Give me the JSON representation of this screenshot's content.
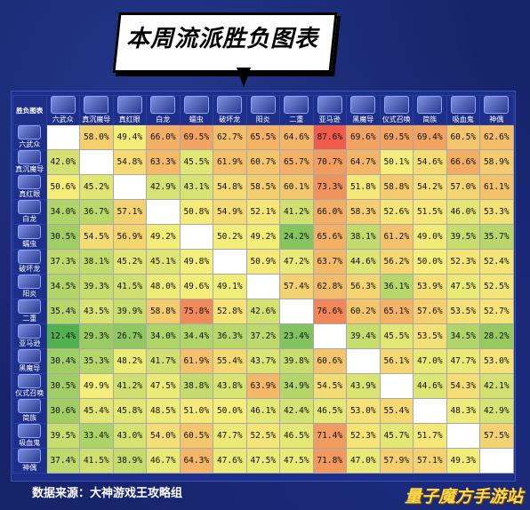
{
  "title": "本周流派胜负图表",
  "footer": {
    "source": "数据来源：大神游戏王攻略组",
    "watermark": "量子魔方手游站"
  },
  "chart_data": {
    "type": "heatmap",
    "corner_label": "胜负图表",
    "categories": [
      "六武众",
      "真沉魔导",
      "真红眼",
      "白龙",
      "蠕虫",
      "破坏龙",
      "阳炎",
      "二重",
      "亚马逊",
      "黑魔导",
      "仪式召唤",
      "简族",
      "吸血鬼",
      "神偶"
    ],
    "values": [
      [
        null,
        "58.0%",
        "49.4%",
        "66.0%",
        "69.5%",
        "62.7%",
        "65.5%",
        "64.6%",
        "87.6%",
        "69.6%",
        "69.5%",
        "69.4%",
        "60.5%",
        "62.6%"
      ],
      [
        "42.0%",
        null,
        "54.8%",
        "63.3%",
        "45.5%",
        "61.9%",
        "60.7%",
        "65.7%",
        "70.7%",
        "64.7%",
        "50.1%",
        "54.6%",
        "66.6%",
        "58.9%"
      ],
      [
        "50.6%",
        "45.2%",
        null,
        "42.9%",
        "43.1%",
        "54.8%",
        "58.5%",
        "60.1%",
        "73.3%",
        "51.8%",
        "58.8%",
        "54.2%",
        "57.0%",
        "61.1%"
      ],
      [
        "34.0%",
        "36.7%",
        "57.1%",
        null,
        "50.8%",
        "54.9%",
        "52.1%",
        "41.2%",
        "66.0%",
        "58.3%",
        "52.6%",
        "51.5%",
        "46.0%",
        "53.3%"
      ],
      [
        "30.5%",
        "54.5%",
        "56.9%",
        "49.2%",
        null,
        "50.2%",
        "49.2%",
        "24.2%",
        "65.6%",
        "38.1%",
        "61.2%",
        "49.0%",
        "39.5%",
        "35.7%"
      ],
      [
        "37.3%",
        "38.1%",
        "45.2%",
        "45.1%",
        "49.8%",
        null,
        "50.9%",
        "47.2%",
        "63.7%",
        "44.6%",
        "56.2%",
        "50.0%",
        "52.3%",
        "52.4%"
      ],
      [
        "34.5%",
        "39.3%",
        "41.5%",
        "48.0%",
        "49.6%",
        "49.1%",
        null,
        "57.4%",
        "62.8%",
        "56.3%",
        "36.1%",
        "53.9%",
        "47.5%",
        "52.5%"
      ],
      [
        "35.4%",
        "43.5%",
        "39.9%",
        "58.8%",
        "75.8%",
        "52.8%",
        "42.6%",
        null,
        "76.6%",
        "60.2%",
        "65.1%",
        "57.6%",
        "53.5%",
        "52.7%"
      ],
      [
        "12.4%",
        "29.3%",
        "26.7%",
        "34.0%",
        "34.4%",
        "36.3%",
        "37.2%",
        "23.4%",
        null,
        "39.4%",
        "45.5%",
        "53.5%",
        "34.5%",
        "28.2%"
      ],
      [
        "30.4%",
        "35.3%",
        "48.2%",
        "41.7%",
        "61.9%",
        "55.4%",
        "43.7%",
        "39.8%",
        "60.6%",
        null,
        "56.1%",
        "47.0%",
        "47.7%",
        "53.0%"
      ],
      [
        "30.5%",
        "49.9%",
        "41.2%",
        "47.5%",
        "38.8%",
        "43.8%",
        "63.9%",
        "34.9%",
        "54.5%",
        "43.9%",
        null,
        "44.6%",
        "54.3%",
        "42.1%"
      ],
      [
        "30.6%",
        "45.4%",
        "45.8%",
        "48.5%",
        "51.0%",
        "50.0%",
        "46.1%",
        "42.4%",
        "46.5%",
        "53.0%",
        "55.4%",
        null,
        "48.3%",
        "42.9%"
      ],
      [
        "39.5%",
        "33.4%",
        "43.0%",
        "54.0%",
        "60.5%",
        "47.7%",
        "52.5%",
        "46.5%",
        "71.4%",
        "52.3%",
        "45.7%",
        "51.7%",
        null,
        "57.5%"
      ],
      [
        "37.4%",
        "41.5%",
        "38.9%",
        "46.7%",
        "64.3%",
        "47.6%",
        "47.5%",
        "47.5%",
        "71.8%",
        "47.0%",
        "57.9%",
        "57.1%",
        "49.3%",
        null
      ]
    ],
    "colors": {
      "low": "#4fb04f",
      "mid": "#f5ee7a",
      "high": "#ef5a4a",
      "diagonal": "#ffffff"
    },
    "legend": "none",
    "grid": true
  }
}
